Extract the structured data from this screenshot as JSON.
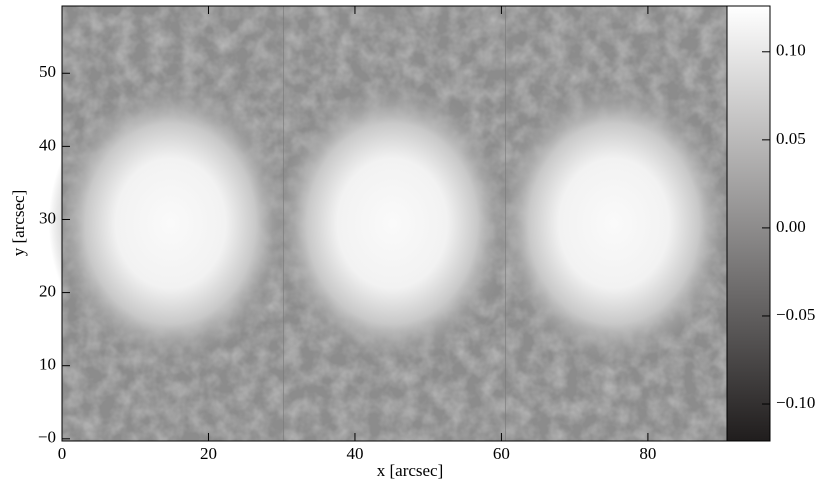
{
  "chart_data": {
    "type": "image",
    "x_label": "x [arcsec]",
    "y_label": "y [arcsec]",
    "xlim": [
      0,
      90.8
    ],
    "ylim": [
      -0.3,
      59.2
    ],
    "xticks": [
      0,
      20,
      40,
      60,
      80
    ],
    "yticks": [
      {
        "value": 0,
        "label": "−0"
      },
      10,
      20,
      30,
      40,
      50
    ],
    "colorbar": {
      "lim": [
        -0.121,
        0.126
      ],
      "ticks": [
        {
          "value": -0.1,
          "label": "−0.10"
        },
        {
          "value": -0.05,
          "label": "−0.05"
        },
        {
          "value": 0,
          "label": "0.00"
        },
        {
          "value": 0.05,
          "label": "0.05"
        },
        {
          "value": 0.1,
          "label": "0.10"
        }
      ]
    }
  }
}
